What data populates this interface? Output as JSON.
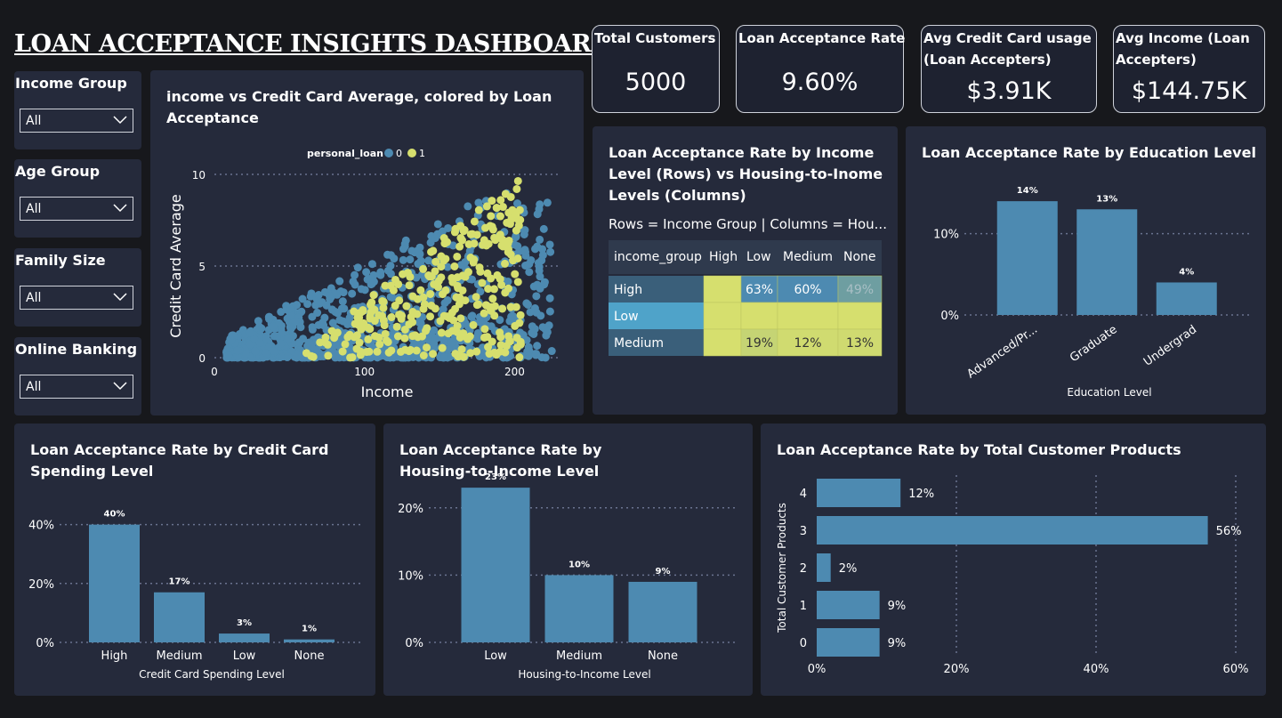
{
  "header": {
    "title": "LOAN ACCEPTANCE INSIGHTS DASHBOARD"
  },
  "slicers": [
    {
      "label": "Income Group",
      "value": "All"
    },
    {
      "label": "Age Group",
      "value": "All"
    },
    {
      "label": "Family Size",
      "value": "All"
    },
    {
      "label": "Online Banking",
      "value": "All"
    }
  ],
  "kpis": [
    {
      "label": "Total Customers",
      "value": "5000"
    },
    {
      "label": "Loan Acceptance Rate",
      "value": "9.60%"
    },
    {
      "label": "Avg Credit Card usage (Loan Accepters)",
      "value": "$3.91K"
    },
    {
      "label": "Avg Income (Loan Accepters)",
      "value": "$144.75K"
    }
  ],
  "scatter_title": "income vs Credit Card Average, colored by Loan Acceptance",
  "matrix": {
    "title": "Loan Acceptance Rate by Income Level (Rows) vs Housing-to-Inome Levels (Columns)",
    "subtitle": "Rows = Income Group | Columns = Hou...",
    "headers": [
      "income_group",
      "High",
      "Low",
      "Medium",
      "None"
    ],
    "rows": [
      {
        "label": "High",
        "cells": [
          "",
          "63%",
          "60%",
          "49%"
        ]
      },
      {
        "label": "Low",
        "cells": [
          "",
          "",
          "",
          ""
        ]
      },
      {
        "label": "Medium",
        "cells": [
          "",
          "19%",
          "12%",
          "13%"
        ]
      }
    ]
  },
  "colors": {
    "blue": "#4d8ab1",
    "yellow": "#d6df6e",
    "panel": "#252a3b",
    "background": "#17181c"
  },
  "chart_data": [
    {
      "type": "scatter",
      "title": "income vs Credit Card Average, colored by Loan Acceptance",
      "xlabel": "Income",
      "ylabel": "Credit Card Average",
      "legend_title": "personal_loan",
      "legend_position": "top",
      "series": [
        {
          "name": "0",
          "color": "#4d8ab1",
          "income_range": [
            8,
            225
          ],
          "ccavg_range": [
            0,
            9
          ]
        },
        {
          "name": "1",
          "color": "#d6df6e",
          "income_range": [
            60,
            205
          ],
          "ccavg_range": [
            0,
            10
          ]
        }
      ],
      "x_ticks": [
        0,
        100,
        200
      ],
      "y_ticks": [
        0,
        5,
        10
      ],
      "xlim": [
        0,
        230
      ],
      "ylim": [
        0,
        10
      ]
    },
    {
      "type": "bar",
      "title": "Loan Acceptance Rate by Education Level",
      "categories": [
        "Advanced/Pr...",
        "Graduate",
        "Undergrad"
      ],
      "values": [
        14,
        13,
        4
      ],
      "data_labels": [
        "14%",
        "13%",
        "4%"
      ],
      "xlabel": "Education Level",
      "ylabel": "",
      "ticks": [
        "0%",
        "10%"
      ],
      "ylim": [
        0,
        15
      ]
    },
    {
      "type": "bar",
      "title": "Loan Acceptance Rate by Credit Card Spending Level",
      "categories": [
        "High",
        "Medium",
        "Low",
        "None"
      ],
      "values": [
        40,
        17,
        3,
        1
      ],
      "data_labels": [
        "40%",
        "17%",
        "3%",
        "1%"
      ],
      "xlabel": "Credit Card Spending Level",
      "ylabel": "",
      "ticks": [
        "0%",
        "20%",
        "40%"
      ],
      "ylim": [
        0,
        42
      ]
    },
    {
      "type": "bar",
      "title": "Loan Acceptance Rate by Housing-to-Income Level",
      "categories": [
        "Low",
        "Medium",
        "None"
      ],
      "values": [
        23,
        10,
        9
      ],
      "data_labels": [
        "23%",
        "10%",
        "9%"
      ],
      "xlabel": "Housing-to-Income Level",
      "ylabel": "",
      "ticks": [
        "0%",
        "10%",
        "20%"
      ],
      "ylim": [
        0,
        25
      ]
    },
    {
      "type": "bar",
      "orientation": "horizontal",
      "title": "Loan Acceptance Rate by Total Customer Products",
      "categories": [
        "4",
        "3",
        "2",
        "1",
        "0"
      ],
      "values": [
        12,
        56,
        2,
        9,
        9
      ],
      "data_labels": [
        "12%",
        "56%",
        "2%",
        "9%",
        "9%"
      ],
      "xlabel": "",
      "ylabel": "Total Customer Products",
      "ticks": [
        "0%",
        "20%",
        "40%",
        "60%"
      ],
      "xlim": [
        0,
        60
      ]
    }
  ]
}
